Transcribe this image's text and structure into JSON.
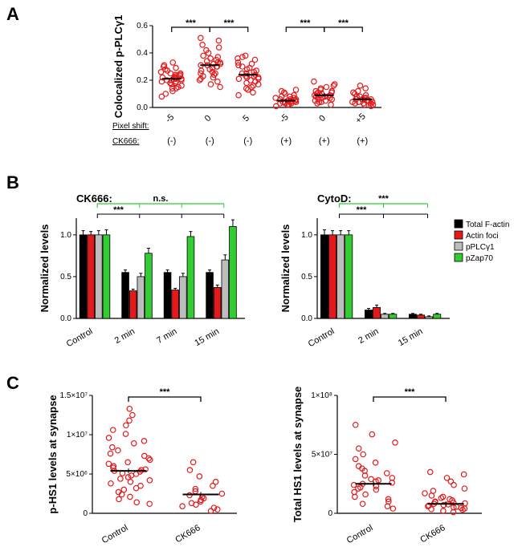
{
  "colors": {
    "red": "#e31a1c",
    "black": "#000000",
    "grey": "#bdbdbd",
    "green": "#33cc33",
    "white": "#ffffff"
  },
  "panelA": {
    "letter": "A",
    "y_label": "Colocalized p-PLCγ1",
    "ylim": [
      0,
      0.6
    ],
    "ytick_step": 0.2,
    "row1_label": "Pixel shift:",
    "row2_label": "CK666:",
    "groups": [
      {
        "shift": "-5",
        "ck": "(-)",
        "mean": 0.21,
        "points": [
          0.08,
          0.1,
          0.12,
          0.14,
          0.14,
          0.15,
          0.16,
          0.17,
          0.18,
          0.18,
          0.19,
          0.19,
          0.2,
          0.2,
          0.2,
          0.21,
          0.21,
          0.22,
          0.22,
          0.22,
          0.23,
          0.23,
          0.24,
          0.24,
          0.25,
          0.25,
          0.26,
          0.27,
          0.28,
          0.29,
          0.3,
          0.31,
          0.33
        ]
      },
      {
        "shift": "0",
        "ck": "(-)",
        "mean": 0.31,
        "points": [
          0.15,
          0.17,
          0.19,
          0.2,
          0.21,
          0.22,
          0.23,
          0.24,
          0.25,
          0.25,
          0.26,
          0.27,
          0.28,
          0.29,
          0.3,
          0.3,
          0.31,
          0.31,
          0.32,
          0.32,
          0.33,
          0.33,
          0.34,
          0.35,
          0.36,
          0.37,
          0.38,
          0.4,
          0.42,
          0.44,
          0.46,
          0.49,
          0.51
        ]
      },
      {
        "shift": "5",
        "ck": "(-)",
        "mean": 0.24,
        "points": [
          0.09,
          0.11,
          0.13,
          0.14,
          0.15,
          0.16,
          0.17,
          0.18,
          0.19,
          0.2,
          0.21,
          0.21,
          0.22,
          0.22,
          0.23,
          0.23,
          0.24,
          0.25,
          0.25,
          0.26,
          0.27,
          0.28,
          0.29,
          0.3,
          0.31,
          0.32,
          0.33,
          0.35,
          0.36,
          0.37,
          0.38
        ]
      },
      {
        "shift": "-5",
        "ck": "(+)",
        "mean": 0.05,
        "points": [
          0.01,
          0.02,
          0.02,
          0.03,
          0.03,
          0.03,
          0.04,
          0.04,
          0.04,
          0.04,
          0.05,
          0.05,
          0.05,
          0.05,
          0.06,
          0.06,
          0.06,
          0.07,
          0.07,
          0.08,
          0.08,
          0.09,
          0.1,
          0.11,
          0.12,
          0.13
        ]
      },
      {
        "shift": "0",
        "ck": "(+)",
        "mean": 0.09,
        "points": [
          0.02,
          0.03,
          0.04,
          0.04,
          0.05,
          0.05,
          0.06,
          0.06,
          0.07,
          0.07,
          0.08,
          0.08,
          0.08,
          0.09,
          0.09,
          0.09,
          0.1,
          0.1,
          0.11,
          0.11,
          0.12,
          0.12,
          0.13,
          0.14,
          0.15,
          0.16,
          0.17,
          0.19
        ]
      },
      {
        "shift": "+5",
        "ck": "(+)",
        "mean": 0.06,
        "points": [
          0.01,
          0.02,
          0.02,
          0.03,
          0.03,
          0.03,
          0.04,
          0.04,
          0.04,
          0.05,
          0.05,
          0.05,
          0.06,
          0.06,
          0.06,
          0.07,
          0.07,
          0.08,
          0.08,
          0.09,
          0.1,
          0.11,
          0.12,
          0.14,
          0.16
        ]
      }
    ],
    "sig_pairs": [
      {
        "g": [
          0,
          1
        ],
        "label": "***"
      },
      {
        "g": [
          1,
          2
        ],
        "label": "***"
      },
      {
        "g": [
          3,
          4
        ],
        "label": "***"
      },
      {
        "g": [
          4,
          5
        ],
        "label": "***"
      }
    ]
  },
  "panelB": {
    "letter": "B",
    "y_label": "Normalized levels",
    "ylim": [
      0,
      1.2
    ],
    "ytick_step": 0.5,
    "yticks": [
      0.0,
      0.5,
      1.0
    ],
    "legend_items": [
      {
        "name": "Total F-actin",
        "key": "black"
      },
      {
        "name": "Actin foci",
        "key": "red"
      },
      {
        "name": "pPLCγ1",
        "key": "grey"
      },
      {
        "name": "pZap70",
        "key": "green"
      }
    ],
    "left": {
      "title": "CK666:",
      "cats": [
        "Control",
        "2 min",
        "7 min",
        "15 min"
      ],
      "series": {
        "black": [
          1.0,
          0.55,
          0.55,
          0.55
        ],
        "red": [
          1.0,
          0.33,
          0.34,
          0.37
        ],
        "grey": [
          1.0,
          0.5,
          0.5,
          0.7
        ],
        "green": [
          1.0,
          0.78,
          0.98,
          1.1
        ]
      },
      "errors": {
        "black": [
          0.05,
          0.03,
          0.03,
          0.03
        ],
        "red": [
          0.04,
          0.02,
          0.02,
          0.03
        ],
        "grey": [
          0.05,
          0.04,
          0.04,
          0.06
        ],
        "green": [
          0.06,
          0.06,
          0.06,
          0.08
        ]
      },
      "sig_black": {
        "from": 0,
        "to": [
          1,
          2,
          3
        ],
        "label": "***"
      },
      "sig_green": {
        "from": 0,
        "to": [
          1,
          2,
          3
        ],
        "label": "n.s."
      }
    },
    "right": {
      "title": "CytoD:",
      "cats": [
        "Control",
        "2 min",
        "15 min"
      ],
      "series": {
        "black": [
          1.0,
          0.1,
          0.05
        ],
        "red": [
          1.0,
          0.13,
          0.04
        ],
        "grey": [
          1.0,
          0.05,
          0.02
        ],
        "green": [
          1.0,
          0.05,
          0.05
        ]
      },
      "errors": {
        "black": [
          0.06,
          0.02,
          0.01
        ],
        "red": [
          0.05,
          0.03,
          0.01
        ],
        "grey": [
          0.05,
          0.01,
          0.01
        ],
        "green": [
          0.05,
          0.01,
          0.01
        ]
      },
      "sig_black": {
        "from": 0,
        "to": [
          1,
          2
        ],
        "label": "***"
      },
      "sig_green": {
        "from": 0,
        "to": [
          1,
          2
        ],
        "label": "***"
      }
    }
  },
  "panelC": {
    "letter": "C",
    "cats": [
      "Control",
      "CK666"
    ],
    "sig_label": "***",
    "left": {
      "y_label": "p-HS1 levels at synapse",
      "ylim": [
        0,
        15000000.0
      ],
      "yticks": [
        0,
        5000000.0,
        10000000.0,
        15000000.0
      ],
      "ytick_labels": [
        "0",
        "5×10⁶",
        "1×10⁷",
        "1.5×10⁷"
      ],
      "means": [
        5400000.0,
        2400000.0
      ],
      "groups": [
        {
          "points": [
            1200000.0,
            1400000.0,
            1800000.0,
            2100000.0,
            2400000.0,
            2700000.0,
            3000000.0,
            3200000.0,
            3500000.0,
            3800000.0,
            4000000.0,
            4200000.0,
            4400000.0,
            4600000.0,
            4800000.0,
            5000000.0,
            5100000.0,
            5300000.0,
            5400000.0,
            5500000.0,
            5600000.0,
            5800000.0,
            6000000.0,
            6300000.0,
            6500000.0,
            6800000.0,
            7000000.0,
            7300000.0,
            7600000.0,
            8000000.0,
            8400000.0,
            8900000.0,
            9200000.0,
            9600000.0,
            10100000.0,
            10600000.0,
            11200000.0,
            11800000.0,
            12500000.0,
            13300000.0
          ]
        },
        {
          "points": [
            300000.0,
            500000.0,
            700000.0,
            900000.0,
            1100000.0,
            1300000.0,
            1500000.0,
            1700000.0,
            1900000.0,
            2100000.0,
            2300000.0,
            2500000.0,
            2800000.0,
            3100000.0,
            3500000.0,
            4000000.0,
            4700000.0,
            5500000.0,
            6500000.0
          ]
        }
      ]
    },
    "right": {
      "y_label": "Total HS1 levels at synapse",
      "ylim": [
        0,
        100000000.0
      ],
      "yticks": [
        0,
        50000000.0,
        100000000.0
      ],
      "ytick_labels": [
        "0",
        "5×10⁷",
        "1×10⁸"
      ],
      "means": [
        25000000.0,
        8000000.0
      ],
      "groups": [
        {
          "points": [
            4000000.0,
            6000000.0,
            8000000.0,
            10000000.0,
            12000000.0,
            14000000.0,
            16000000.0,
            18000000.0,
            20000000.0,
            21000000.0,
            22000000.0,
            23000000.0,
            24000000.0,
            25000000.0,
            26000000.0,
            27000000.0,
            28000000.0,
            29000000.0,
            30000000.0,
            32000000.0,
            34000000.0,
            36000000.0,
            38000000.0,
            40000000.0,
            43000000.0,
            46000000.0,
            50000000.0,
            55000000.0,
            60000000.0,
            67000000.0,
            75000000.0
          ]
        },
        {
          "points": [
            1000000.0,
            2000000.0,
            3000000.0,
            3500000.0,
            4000000.0,
            4500000.0,
            5000000.0,
            5500000.0,
            6000000.0,
            6500000.0,
            7000000.0,
            7500000.0,
            8000000.0,
            8500000.0,
            9000000.0,
            9500000.0,
            10000000.0,
            11000000.0,
            12000000.0,
            13000000.0,
            14000000.0,
            15000000.0,
            17000000.0,
            19000000.0,
            21000000.0,
            24000000.0,
            27000000.0,
            30000000.0,
            33000000.0,
            35000000.0
          ]
        }
      ]
    }
  }
}
